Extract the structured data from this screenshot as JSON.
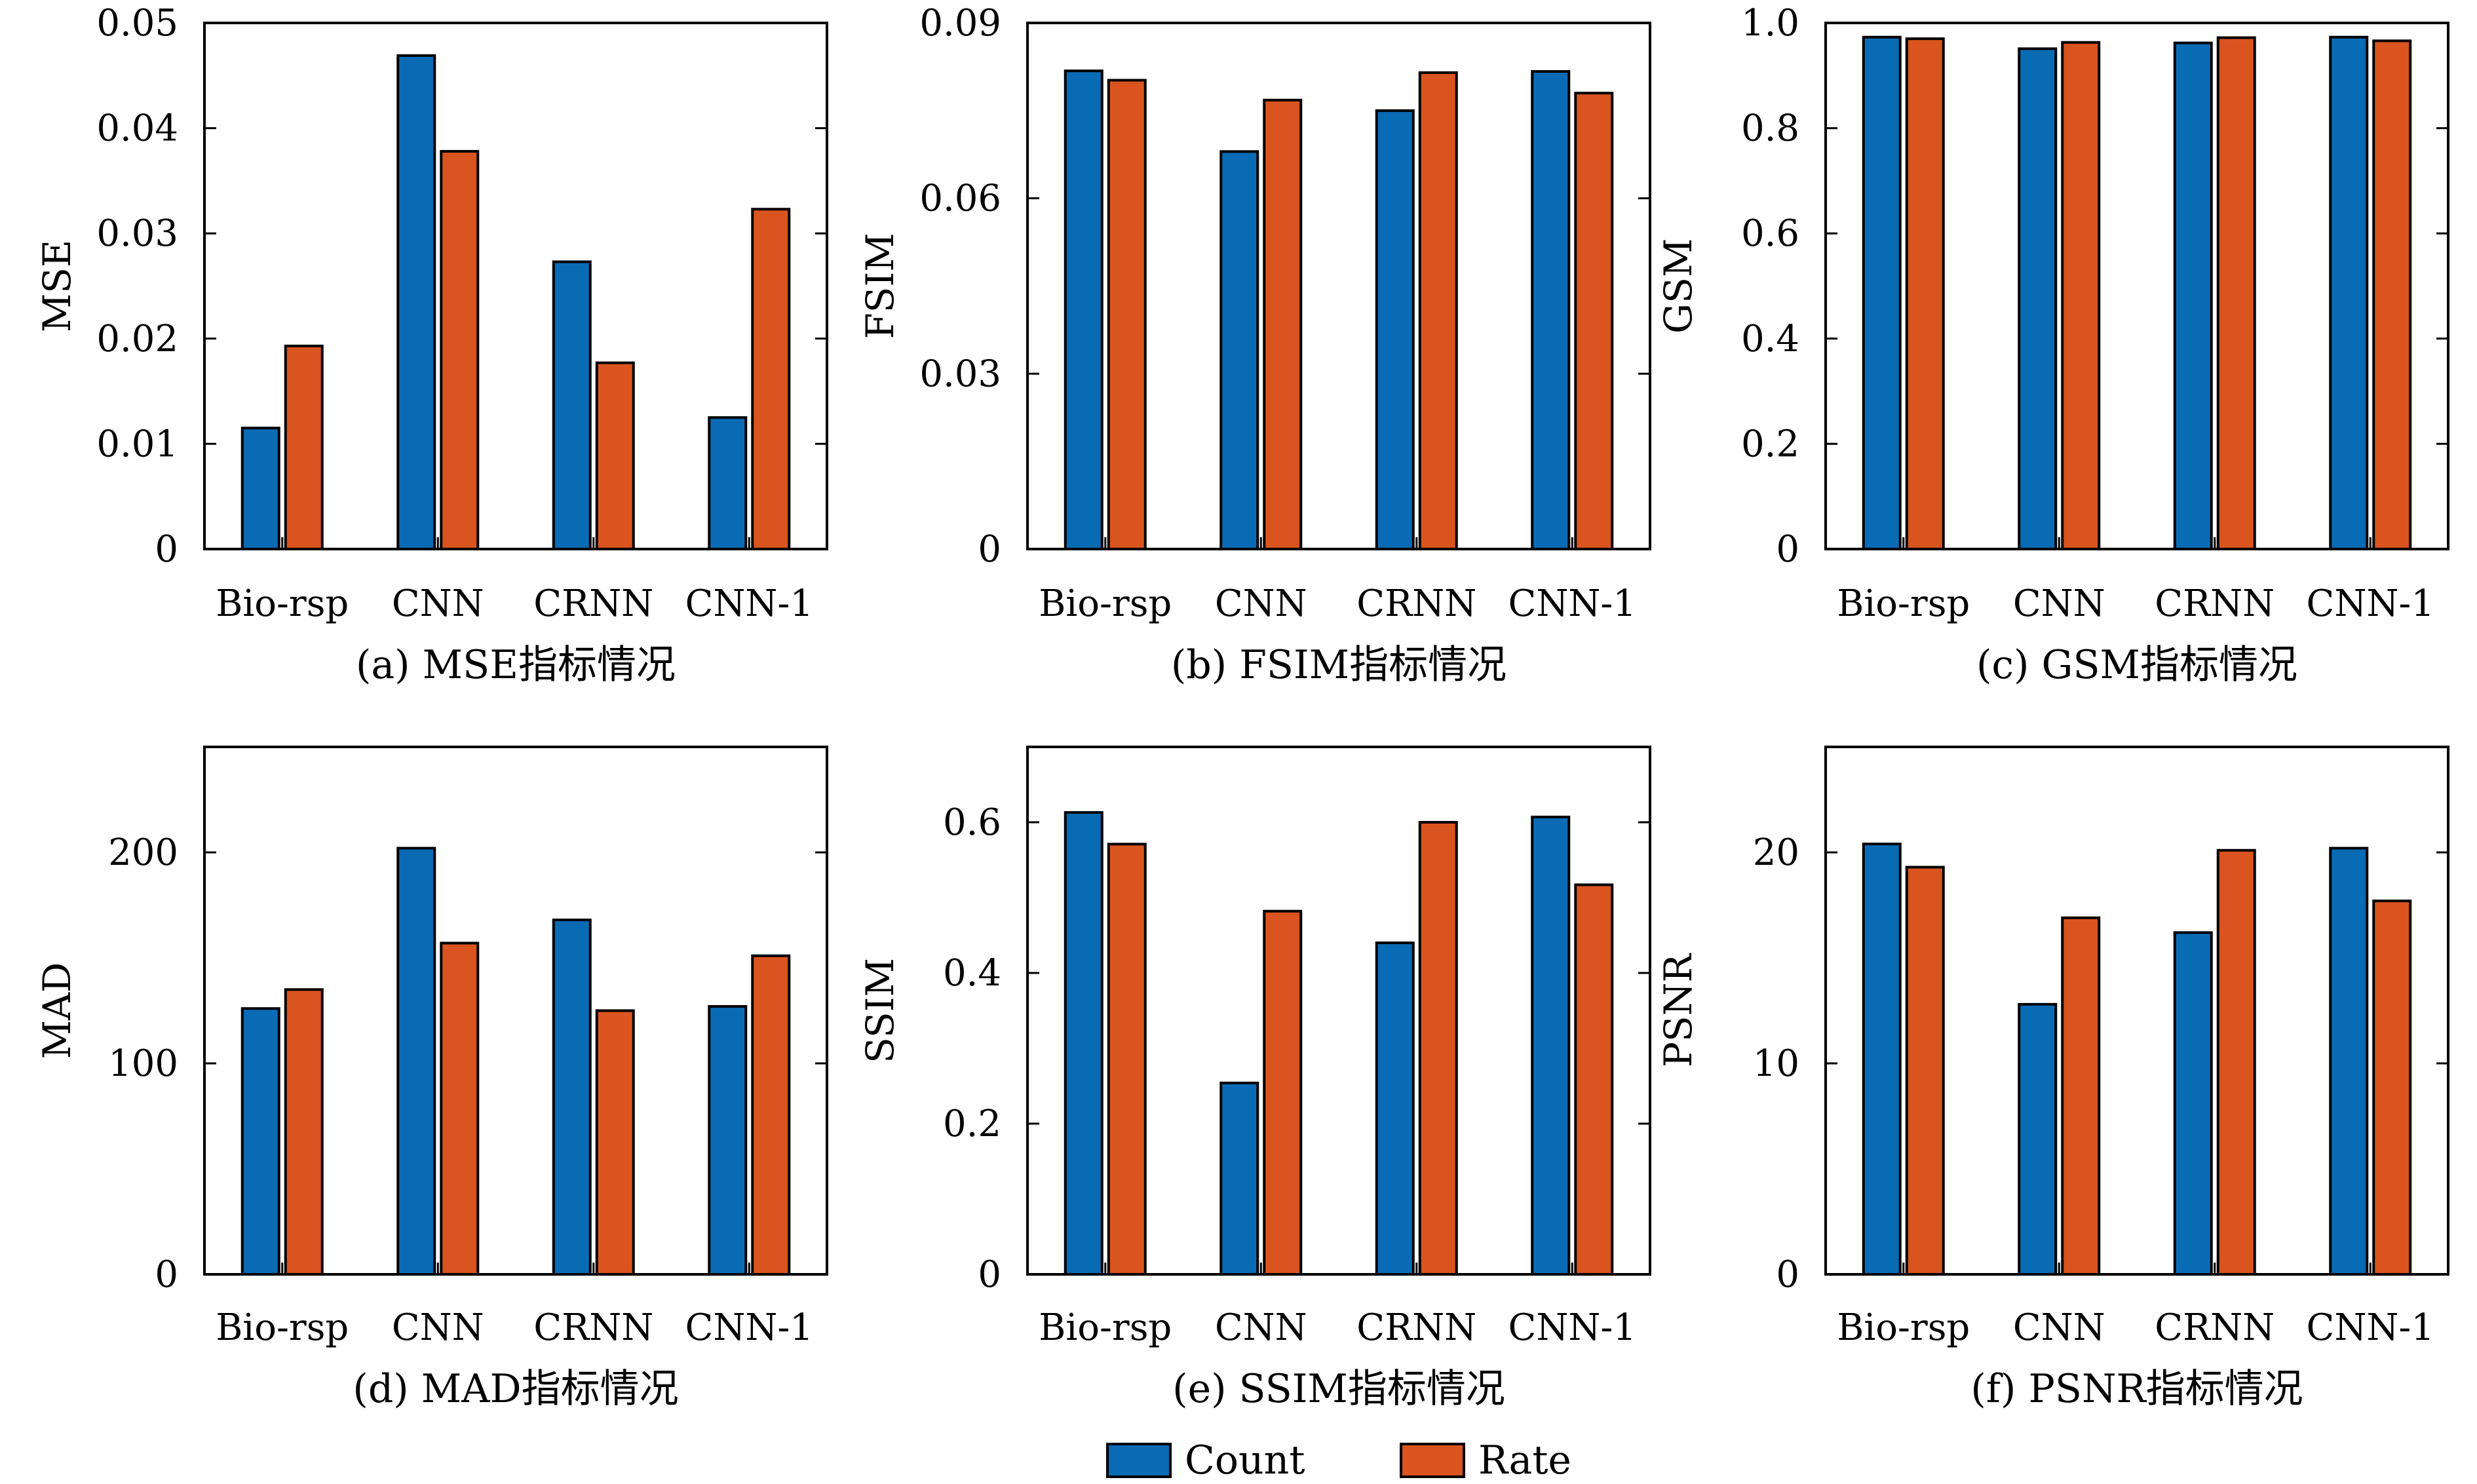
{
  "colors": {
    "count": "#0a6bb5",
    "rate": "#d9541e"
  },
  "legend": [
    {
      "label": "Count",
      "color": "#0a6bb5"
    },
    {
      "label": "Rate",
      "color": "#d9541e"
    }
  ],
  "chart_data": [
    {
      "type": "bar",
      "caption": "(a) MSE指标情况",
      "ylabel": "MSE",
      "categories": [
        "Bio-rsp",
        "CNN",
        "CRNN",
        "CNN-1"
      ],
      "ylim": [
        0,
        0.05
      ],
      "yticks": [
        "0",
        "0.01",
        "0.02",
        "0.03",
        "0.04",
        "0.05"
      ],
      "series": [
        {
          "name": "Count",
          "values": [
            0.0115,
            0.0469,
            0.0273,
            0.0125
          ]
        },
        {
          "name": "Rate",
          "values": [
            0.0193,
            0.0378,
            0.0177,
            0.0323
          ]
        }
      ]
    },
    {
      "type": "bar",
      "caption": "(b) FSIM指标情况",
      "ylabel": "FSIM",
      "categories": [
        "Bio-rsp",
        "CNN",
        "CRNN",
        "CNN-1"
      ],
      "ylim": [
        0,
        0.09
      ],
      "yticks": [
        "0",
        "0.03",
        "0.06",
        "0.09"
      ],
      "series": [
        {
          "name": "Count",
          "values": [
            0.0818,
            0.068,
            0.075,
            0.0817
          ]
        },
        {
          "name": "Rate",
          "values": [
            0.0802,
            0.0768,
            0.0815,
            0.078
          ]
        }
      ]
    },
    {
      "type": "bar",
      "caption": "(c) GSM指标情况",
      "ylabel": "GSM",
      "categories": [
        "Bio-rsp",
        "CNN",
        "CRNN",
        "CNN-1"
      ],
      "ylim": [
        0,
        1.0
      ],
      "yticks": [
        "0",
        "0.2",
        "0.4",
        "0.6",
        "0.8",
        "1.0"
      ],
      "series": [
        {
          "name": "Count",
          "values": [
            0.973,
            0.951,
            0.962,
            0.973
          ]
        },
        {
          "name": "Rate",
          "values": [
            0.97,
            0.963,
            0.972,
            0.966
          ]
        }
      ]
    },
    {
      "type": "bar",
      "caption": "(d) MAD指标情况",
      "ylabel": "MAD",
      "categories": [
        "Bio-rsp",
        "CNN",
        "CRNN",
        "CNN-1"
      ],
      "ylim": [
        0,
        250
      ],
      "yticks": [
        "0",
        "100",
        "200"
      ],
      "series": [
        {
          "name": "Count",
          "values": [
            126,
            202,
            168,
            127
          ]
        },
        {
          "name": "Rate",
          "values": [
            135,
            157,
            125,
            151
          ]
        }
      ]
    },
    {
      "type": "bar",
      "caption": "(e) SSIM指标情况",
      "ylabel": "SSIM",
      "categories": [
        "Bio-rsp",
        "CNN",
        "CRNN",
        "CNN-1"
      ],
      "ylim": [
        0,
        0.7
      ],
      "yticks": [
        "0",
        "0.2",
        "0.4",
        "0.6"
      ],
      "series": [
        {
          "name": "Count",
          "values": [
            0.613,
            0.254,
            0.44,
            0.607
          ]
        },
        {
          "name": "Rate",
          "values": [
            0.571,
            0.482,
            0.6,
            0.517
          ]
        }
      ]
    },
    {
      "type": "bar",
      "caption": "(f) PSNR指标情况",
      "ylabel": "PSNR",
      "categories": [
        "Bio-rsp",
        "CNN",
        "CRNN",
        "CNN-1"
      ],
      "ylim": [
        0,
        25
      ],
      "yticks": [
        "0",
        "10",
        "20"
      ],
      "series": [
        {
          "name": "Count",
          "values": [
            20.4,
            12.8,
            16.2,
            20.2
          ]
        },
        {
          "name": "Rate",
          "values": [
            19.3,
            16.9,
            20.1,
            17.7
          ]
        }
      ]
    }
  ]
}
